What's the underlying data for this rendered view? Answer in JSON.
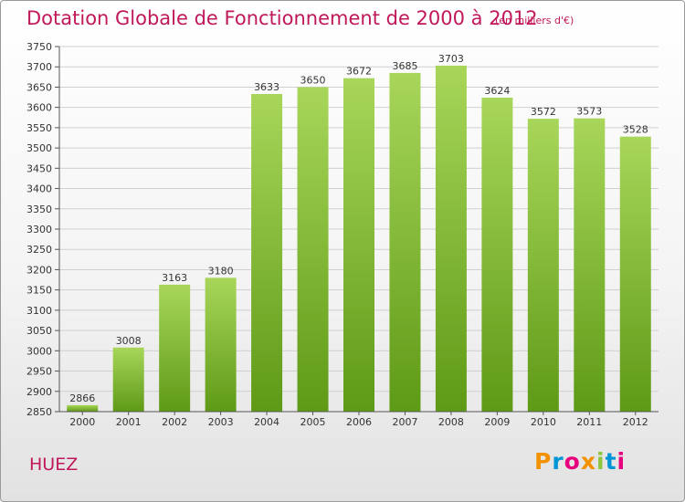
{
  "title": "Dotation Globale de Fonctionnement de 2000 à 2012",
  "subtitle": "(en milliers d'€)",
  "commune": "HUEZ",
  "logo": {
    "text": "Proxiti",
    "letter_colors": [
      "#f39200",
      "#0096d6",
      "#e6007e",
      "#f39200",
      "#8cc63f",
      "#0096d6",
      "#e6007e"
    ]
  },
  "colors": {
    "title": "#c0185a",
    "bar_light": "#a8d65a",
    "bar_dark": "#5e9a16",
    "grid": "#d0d0d0"
  },
  "chart_data": {
    "type": "bar",
    "title": "Dotation Globale de Fonctionnement de 2000 à 2012",
    "subtitle": "(en milliers d'€)",
    "categories": [
      "2000",
      "2001",
      "2002",
      "2003",
      "2004",
      "2005",
      "2006",
      "2007",
      "2008",
      "2009",
      "2010",
      "2011",
      "2012"
    ],
    "values": [
      2866,
      3008,
      3163,
      3180,
      3633,
      3650,
      3672,
      3685,
      3703,
      3624,
      3572,
      3573,
      3528
    ],
    "ylim": [
      2850,
      3750
    ],
    "ytick_step": 50,
    "grid": true,
    "legend": "none"
  }
}
